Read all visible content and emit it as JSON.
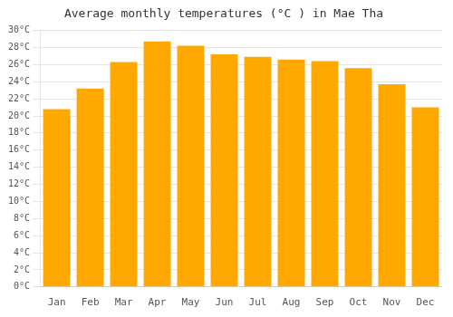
{
  "chart_data": {
    "type": "bar",
    "title": "Average monthly temperatures (°C ) in Mae Tha",
    "categories": [
      "Jan",
      "Feb",
      "Mar",
      "Apr",
      "May",
      "Jun",
      "Jul",
      "Aug",
      "Sep",
      "Oct",
      "Nov",
      "Dec"
    ],
    "values": [
      20.8,
      23.2,
      26.3,
      28.7,
      28.2,
      27.2,
      26.9,
      26.6,
      26.4,
      25.6,
      23.7,
      21.0
    ],
    "color": "#FFA800",
    "ylim": [
      0,
      30
    ],
    "yticks": [
      {
        "value": 0,
        "label": "0°C"
      },
      {
        "value": 2,
        "label": "2°C"
      },
      {
        "value": 4,
        "label": "4°C"
      },
      {
        "value": 6,
        "label": "6°C"
      },
      {
        "value": 8,
        "label": "8°C"
      },
      {
        "value": 10,
        "label": "10°C"
      },
      {
        "value": 12,
        "label": "12°C"
      },
      {
        "value": 14,
        "label": "14°C"
      },
      {
        "value": 16,
        "label": "16°C"
      },
      {
        "value": 18,
        "label": "18°C"
      },
      {
        "value": 20,
        "label": "20°C"
      },
      {
        "value": 22,
        "label": "22°C"
      },
      {
        "value": 24,
        "label": "24°C"
      },
      {
        "value": 26,
        "label": "26°C"
      },
      {
        "value": 28,
        "label": "28°C"
      },
      {
        "value": 30,
        "label": "30°C"
      }
    ],
    "grid": true
  }
}
